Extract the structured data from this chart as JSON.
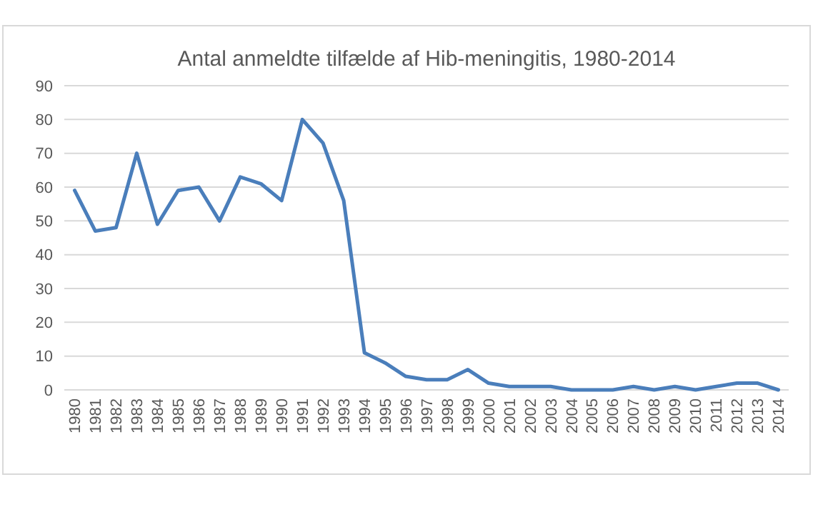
{
  "chart_data": {
    "type": "line",
    "title": "Antal anmeldte tilfælde af Hib-meningitis, 1980-2014",
    "categories": [
      "1980",
      "1981",
      "1982",
      "1983",
      "1984",
      "1985",
      "1986",
      "1987",
      "1988",
      "1989",
      "1990",
      "1991",
      "1992",
      "1993",
      "1994",
      "1995",
      "1996",
      "1997",
      "1998",
      "1999",
      "2000",
      "2001",
      "2002",
      "2003",
      "2004",
      "2005",
      "2006",
      "2007",
      "2008",
      "2009",
      "2010",
      "2011",
      "2012",
      "2013",
      "2014"
    ],
    "series": [
      {
        "color": "#4a7ebb",
        "values": [
          59,
          47,
          48,
          70,
          49,
          59,
          60,
          50,
          63,
          61,
          56,
          80,
          73,
          56,
          11,
          8,
          4,
          3,
          3,
          6,
          2,
          1,
          1,
          1,
          0,
          0,
          0,
          1,
          0,
          1,
          0,
          1,
          2,
          2,
          0
        ]
      }
    ],
    "ylim": [
      0,
      90
    ],
    "yticks": [
      0,
      10,
      20,
      30,
      40,
      50,
      60,
      70,
      80,
      90
    ],
    "grid": "y",
    "marker": "none",
    "line_style": "solid"
  }
}
